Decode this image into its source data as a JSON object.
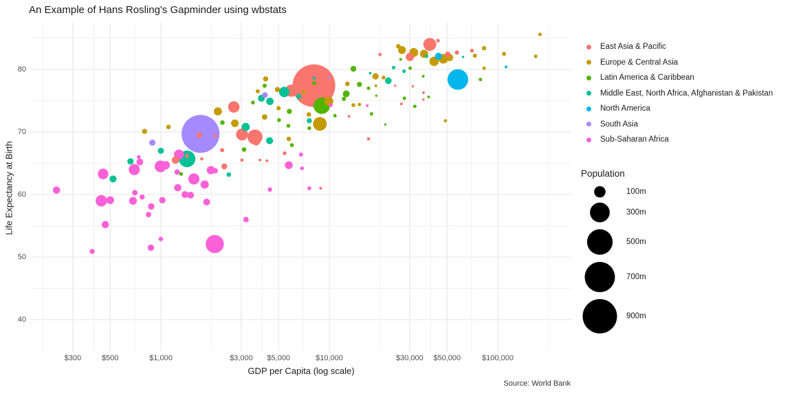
{
  "title": "An Example of Hans Rosling's Gapminder using wbstats",
  "caption": "Source: World Bank",
  "x_axis": {
    "label": "GDP per Capita (log scale)",
    "ticks": [
      {
        "value": 300,
        "label": "$300"
      },
      {
        "value": 500,
        "label": "$500"
      },
      {
        "value": 1000,
        "label": "$1,000"
      },
      {
        "value": 3000,
        "label": "$3,000"
      },
      {
        "value": 5000,
        "label": "$5,000"
      },
      {
        "value": 10000,
        "label": "$10,000"
      },
      {
        "value": 30000,
        "label": "$30,000"
      },
      {
        "value": 50000,
        "label": "$50,000"
      },
      {
        "value": 100000,
        "label": "$100,000"
      }
    ],
    "minor_gridlines": [
      200,
      400,
      700,
      2000,
      4000,
      7000,
      20000,
      40000,
      70000,
      200000
    ]
  },
  "y_axis": {
    "label": "Life Expectancy at Birth",
    "ticks": [
      {
        "value": 40,
        "label": "40"
      },
      {
        "value": 50,
        "label": "50"
      },
      {
        "value": 60,
        "label": "60"
      },
      {
        "value": 70,
        "label": "70"
      },
      {
        "value": 80,
        "label": "80"
      }
    ],
    "minor_gridlines": [
      45,
      55,
      65,
      75,
      85
    ]
  },
  "legend": {
    "regions": [
      {
        "name": "East Asia & Pacific",
        "color": "#F8766D"
      },
      {
        "name": "Europe & Central Asia",
        "color": "#C49A00"
      },
      {
        "name": "Latin America & Caribbean",
        "color": "#53B400"
      },
      {
        "name": "Middle East, North Africa, Afghanistan & Pakistan",
        "color": "#00C094"
      },
      {
        "name": "North America",
        "color": "#00B6EB"
      },
      {
        "name": "South Asia",
        "color": "#A58AFF"
      },
      {
        "name": "Sub-Saharan Africa",
        "color": "#FB61D7"
      }
    ],
    "size": {
      "title": "Population",
      "entries": [
        {
          "label": "100m",
          "pop_millions": 100
        },
        {
          "label": "300m",
          "pop_millions": 300
        },
        {
          "label": "500m",
          "pop_millions": 500
        },
        {
          "label": "700m",
          "pop_millions": 700
        },
        {
          "label": "900m",
          "pop_millions": 900
        }
      ]
    }
  },
  "chart_data": {
    "type": "scatter",
    "subtype": "bubble",
    "title": "An Example of Hans Rosling's Gapminder using wbstats",
    "xlabel": "GDP per Capita (log scale)",
    "ylabel": "Life Expectancy at Birth",
    "x_scale": "log10",
    "x_domain": [
      170,
      270000
    ],
    "y_domain": [
      35,
      87.5
    ],
    "grid": true,
    "legend_position": "right",
    "point_format": [
      "gdp_per_capita_usd",
      "life_expectancy_years",
      "population_millions"
    ],
    "series": [
      {
        "name": "East Asia & Pacific",
        "color": "#F8766D",
        "points": [
          [
            8100,
            77.4,
            1390
          ],
          [
            1220,
            65.5,
            40
          ],
          [
            1430,
            66.2,
            11
          ],
          [
            1750,
            65.7,
            8
          ],
          [
            1690,
            69.5,
            23
          ],
          [
            2100,
            69.4,
            10
          ],
          [
            2310,
            67.1,
            13
          ],
          [
            2380,
            64.5,
            27
          ],
          [
            2710,
            74.0,
            100
          ],
          [
            3030,
            69.6,
            110
          ],
          [
            3620,
            69.2,
            170
          ],
          [
            3680,
            68.5,
            50
          ],
          [
            3030,
            65.5,
            8
          ],
          [
            3870,
            65.5,
            6
          ],
          [
            4260,
            65.4,
            6
          ],
          [
            5430,
            66.6,
            11
          ],
          [
            5950,
            76.6,
            115
          ],
          [
            8880,
            61.0,
            6
          ],
          [
            13100,
            72.5,
            6
          ],
          [
            17100,
            68.9,
            8
          ],
          [
            20000,
            82.4,
            8
          ],
          [
            24600,
            77.4,
            4
          ],
          [
            26800,
            74.5,
            6
          ],
          [
            30100,
            82.0,
            51
          ],
          [
            31300,
            77.3,
            4
          ],
          [
            36200,
            76.3,
            6
          ],
          [
            36200,
            75.2,
            4
          ],
          [
            39500,
            84.0,
            126
          ],
          [
            44200,
            84.6,
            10
          ],
          [
            50500,
            82.4,
            25
          ],
          [
            57200,
            82.7,
            14
          ],
          [
            70300,
            83.0,
            11
          ]
        ]
      },
      {
        "name": "Europe & Central Asia",
        "color": "#C49A00",
        "points": [
          [
            800,
            70.1,
            20
          ],
          [
            1110,
            70.8,
            16
          ],
          [
            2180,
            73.3,
            50
          ],
          [
            2750,
            71.4,
            44
          ],
          [
            3760,
            76.5,
            13
          ],
          [
            4130,
            72.4,
            23
          ],
          [
            4190,
            78.5,
            20
          ],
          [
            4920,
            76.8,
            20
          ],
          [
            5000,
            73.8,
            14
          ],
          [
            5750,
            68.9,
            16
          ],
          [
            7030,
            76.4,
            13
          ],
          [
            7560,
            72.8,
            16
          ],
          [
            8790,
            71.3,
            144
          ],
          [
            9930,
            74.9,
            60
          ],
          [
            12800,
            77.7,
            16
          ],
          [
            13900,
            74.3,
            11
          ],
          [
            15100,
            74.4,
            9
          ],
          [
            18900,
            77.4,
            6
          ],
          [
            18800,
            78.9,
            30
          ],
          [
            21000,
            78.7,
            11
          ],
          [
            25700,
            83.7,
            16
          ],
          [
            27000,
            83.1,
            47
          ],
          [
            31700,
            82.7,
            60
          ],
          [
            36500,
            82.5,
            50
          ],
          [
            41900,
            81.3,
            66
          ],
          [
            47500,
            81.7,
            70
          ],
          [
            51700,
            81.9,
            40
          ],
          [
            48900,
            71.8,
            8
          ],
          [
            73100,
            82.2,
            13
          ],
          [
            83000,
            83.4,
            15
          ],
          [
            83000,
            80.2,
            9
          ],
          [
            109000,
            82.5,
            12
          ],
          [
            168000,
            82.1,
            10
          ],
          [
            178000,
            85.6,
            10
          ]
        ]
      },
      {
        "name": "Latin America & Caribbean",
        "color": "#53B400",
        "points": [
          [
            1320,
            63.3,
            11
          ],
          [
            2320,
            71.5,
            16
          ],
          [
            3120,
            67.2,
            16
          ],
          [
            3520,
            74.7,
            11
          ],
          [
            4130,
            77.4,
            13
          ],
          [
            5030,
            71.9,
            11
          ],
          [
            5790,
            73.3,
            20
          ],
          [
            5990,
            67.9,
            11
          ],
          [
            5710,
            71.0,
            11
          ],
          [
            7610,
            70.6,
            11
          ],
          [
            8130,
            77.8,
            13
          ],
          [
            9020,
            74.2,
            209
          ],
          [
            10800,
            72.6,
            9
          ],
          [
            12600,
            76.1,
            36
          ],
          [
            12200,
            75.3,
            14
          ],
          [
            13900,
            80.1,
            25
          ],
          [
            15100,
            77.6,
            20
          ],
          [
            17100,
            77.0,
            9
          ],
          [
            17800,
            72.9,
            9
          ],
          [
            19000,
            75.8,
            4
          ],
          [
            21500,
            71.2,
            4
          ],
          [
            26500,
            81.6,
            6
          ],
          [
            27900,
            75.4,
            9
          ],
          [
            30200,
            80.2,
            9
          ],
          [
            32200,
            74.1,
            9
          ],
          [
            36100,
            78.9,
            6
          ],
          [
            38900,
            75.6,
            6
          ],
          [
            78900,
            78.4,
            9
          ]
        ]
      },
      {
        "name": "Middle East, North Africa, Afghanistan & Pakistan",
        "color": "#00C094",
        "points": [
          [
            520,
            62.5,
            37
          ],
          [
            660,
            65.3,
            30
          ],
          [
            1000,
            67.0,
            28
          ],
          [
            1430,
            65.7,
            212
          ],
          [
            2530,
            63.2,
            16
          ],
          [
            3190,
            70.8,
            50
          ],
          [
            3950,
            75.4,
            36
          ],
          [
            4420,
            68.6,
            38
          ],
          [
            4440,
            74.9,
            42
          ],
          [
            5400,
            76.4,
            82
          ],
          [
            6580,
            75.7,
            20
          ],
          [
            7610,
            71.8,
            20
          ],
          [
            8130,
            78.6,
            7
          ],
          [
            17500,
            79.4,
            5
          ],
          [
            22400,
            78.2,
            33
          ],
          [
            24100,
            80.3,
            9
          ],
          [
            27800,
            79.7,
            10
          ],
          [
            37800,
            82.1,
            9
          ],
          [
            62300,
            82.0,
            4
          ]
        ]
      },
      {
        "name": "North America",
        "color": "#00B6EB",
        "points": [
          [
            58000,
            78.4,
            324
          ],
          [
            44500,
            82.1,
            37
          ],
          [
            112000,
            80.4,
            6
          ]
        ]
      },
      {
        "name": "South Asia",
        "color": "#A58AFF",
        "points": [
          [
            1720,
            69.7,
            1100
          ],
          [
            890,
            68.3,
            29
          ],
          [
            4150,
            75.9,
            25
          ],
          [
            10000,
            78.7,
            6
          ]
        ]
      },
      {
        "name": "Sub-Saharan Africa",
        "color": "#FB61D7",
        "points": [
          [
            240,
            60.7,
            40
          ],
          [
            454,
            63.3,
            85
          ],
          [
            443,
            59.0,
            100
          ],
          [
            500,
            59.1,
            47
          ],
          [
            391,
            50.9,
            20
          ],
          [
            468,
            55.2,
            40
          ],
          [
            695,
            64.0,
            95
          ],
          [
            750,
            65.2,
            36
          ],
          [
            739,
            66.0,
            11
          ],
          [
            701,
            60.3,
            23
          ],
          [
            683,
            59.0,
            47
          ],
          [
            774,
            59.6,
            20
          ],
          [
            876,
            58.1,
            32
          ],
          [
            844,
            56.8,
            23
          ],
          [
            995,
            64.5,
            105
          ],
          [
            1070,
            64.7,
            52
          ],
          [
            1020,
            59.1,
            32
          ],
          [
            1000,
            52.9,
            16
          ],
          [
            873,
            51.5,
            32
          ],
          [
            1280,
            66.4,
            77
          ],
          [
            1260,
            61.1,
            40
          ],
          [
            1250,
            63.6,
            23
          ],
          [
            1390,
            60.0,
            36
          ],
          [
            1500,
            59.9,
            36
          ],
          [
            1570,
            62.5,
            95
          ],
          [
            1820,
            61.6,
            52
          ],
          [
            1980,
            63.9,
            52
          ],
          [
            2100,
            63.8,
            23
          ],
          [
            1870,
            58.8,
            36
          ],
          [
            2090,
            52.1,
            250
          ],
          [
            3200,
            56.0,
            23
          ],
          [
            4440,
            60.8,
            16
          ],
          [
            5750,
            64.7,
            47
          ],
          [
            6790,
            66.4,
            13
          ],
          [
            6880,
            64.2,
            11
          ],
          [
            7610,
            61.0,
            11
          ],
          [
            10200,
            74.3,
            11
          ],
          [
            16800,
            74.2,
            6
          ]
        ]
      }
    ]
  }
}
